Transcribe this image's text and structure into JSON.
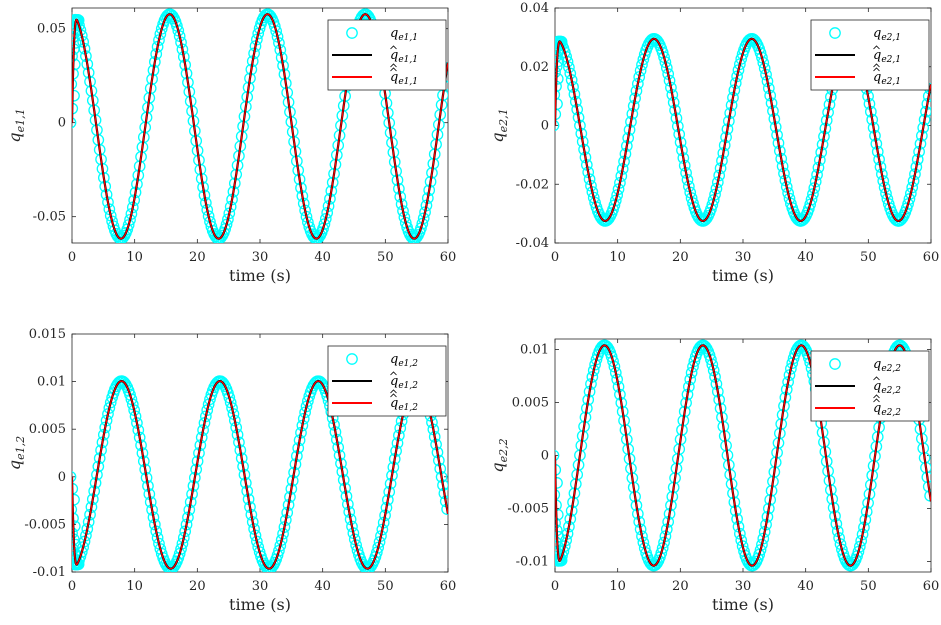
{
  "chart_data": [
    {
      "type": "line",
      "xlabel": "time (s)",
      "ylabel": {
        "base": "q",
        "sub": "e1,1"
      },
      "xlim": [
        0,
        60
      ],
      "ylim": [
        -0.064,
        0.061
      ],
      "xticks": [
        "0",
        "10",
        "20",
        "30",
        "40",
        "50",
        "60"
      ],
      "yticks": [
        {
          "v": 0.05,
          "label": "0.05"
        },
        {
          "v": 0,
          "label": "0"
        },
        {
          "v": -0.05,
          "label": "-0.05"
        }
      ],
      "legend": {
        "position": "top-right",
        "entries": [
          {
            "base": "q",
            "hat": 0,
            "sub": "e1,1"
          },
          {
            "base": "q",
            "hat": 1,
            "sub": "e1,1"
          },
          {
            "base": "q",
            "hat": 2,
            "sub": "e1,1"
          }
        ]
      },
      "signal": {
        "amplitude": 0.0597,
        "period": 15.6,
        "peak_time": 15.6,
        "offset": -0.002,
        "rise_end": 0.9
      },
      "series": [
        {
          "name": "q_e1,1",
          "style": "markers",
          "color": "#00ffff"
        },
        {
          "name": "q̂_e1,1",
          "style": "line",
          "color": "#000000"
        },
        {
          "name": "q̂̂_e1,1",
          "style": "line",
          "color": "#ff0000"
        }
      ]
    },
    {
      "type": "line",
      "xlabel": "time (s)",
      "ylabel": {
        "base": "q",
        "sub": "e2,1"
      },
      "xlim": [
        0,
        60
      ],
      "ylim": [
        -0.04,
        0.04
      ],
      "xticks": [
        "0",
        "10",
        "20",
        "30",
        "40",
        "50",
        "60"
      ],
      "yticks": [
        {
          "v": 0.04,
          "label": "0.04"
        },
        {
          "v": 0.02,
          "label": "0.02"
        },
        {
          "v": 0,
          "label": "0"
        },
        {
          "v": -0.02,
          "label": "-0.02"
        },
        {
          "v": -0.04,
          "label": "-0.04"
        }
      ],
      "legend": {
        "position": "top-right",
        "entries": [
          {
            "base": "q",
            "hat": 0,
            "sub": "e2,1"
          },
          {
            "base": "q",
            "hat": 1,
            "sub": "e2,1"
          },
          {
            "base": "q",
            "hat": 2,
            "sub": "e2,1"
          }
        ]
      },
      "signal": {
        "amplitude": 0.031,
        "period": 15.6,
        "peak_time": 15.8,
        "offset": -0.0015,
        "rise_end": 0.9
      },
      "series": [
        {
          "name": "q_e2,1",
          "style": "markers",
          "color": "#00ffff"
        },
        {
          "name": "q̂_e2,1",
          "style": "line",
          "color": "#000000"
        },
        {
          "name": "q̂̂_e2,1",
          "style": "line",
          "color": "#ff0000"
        }
      ]
    },
    {
      "type": "line",
      "xlabel": "time (s)",
      "ylabel": {
        "base": "q",
        "sub": "e1,2"
      },
      "xlim": [
        0,
        60
      ],
      "ylim": [
        -0.01,
        0.015
      ],
      "xticks": [
        "0",
        "10",
        "20",
        "30",
        "40",
        "50",
        "60"
      ],
      "yticks": [
        {
          "v": 0.015,
          "label": "0.015"
        },
        {
          "v": 0.01,
          "label": "0.01"
        },
        {
          "v": 0.005,
          "label": "0.005"
        },
        {
          "v": 0,
          "label": "0"
        },
        {
          "v": -0.005,
          "label": "-0.005"
        },
        {
          "v": -0.01,
          "label": "-0.01"
        }
      ],
      "legend": {
        "position": "top-right",
        "entries": [
          {
            "base": "q",
            "hat": 0,
            "sub": "e1,2"
          },
          {
            "base": "q",
            "hat": 1,
            "sub": "e1,2"
          },
          {
            "base": "q",
            "hat": 2,
            "sub": "e1,2"
          }
        ]
      },
      "signal": {
        "amplitude": 0.00985,
        "period": 15.7,
        "peak_time": 7.9,
        "offset": 0.0002,
        "rise_end": 0.9
      },
      "series": [
        {
          "name": "q_e1,2",
          "style": "markers",
          "color": "#00ffff"
        },
        {
          "name": "q̂_e1,2",
          "style": "line",
          "color": "#000000"
        },
        {
          "name": "q̂̂_e1,2",
          "style": "line",
          "color": "#ff0000"
        }
      ]
    },
    {
      "type": "line",
      "xlabel": "time (s)",
      "ylabel": {
        "base": "q",
        "sub": "e2,2"
      },
      "xlim": [
        0,
        60
      ],
      "ylim": [
        -0.011,
        0.011
      ],
      "xticks": [
        "0",
        "10",
        "20",
        "30",
        "40",
        "50",
        "60"
      ],
      "yticks": [
        {
          "v": 0.01,
          "label": "0.01"
        },
        {
          "v": 0.005,
          "label": "0.005"
        },
        {
          "v": 0,
          "label": "0"
        },
        {
          "v": -0.005,
          "label": "-0.005"
        },
        {
          "v": -0.01,
          "label": "-0.01"
        }
      ],
      "legend": {
        "position": "top-right",
        "entries": [
          {
            "base": "q",
            "hat": 0,
            "sub": "e2,2"
          },
          {
            "base": "q",
            "hat": 1,
            "sub": "e2,2"
          },
          {
            "base": "q",
            "hat": 2,
            "sub": "e2,2"
          }
        ]
      },
      "signal": {
        "amplitude": 0.0104,
        "period": 15.7,
        "peak_time": 7.9,
        "offset": 0.0,
        "rise_end": 0.9
      },
      "series": [
        {
          "name": "q_e2,2",
          "style": "markers",
          "color": "#00ffff"
        },
        {
          "name": "q̂_e2,2",
          "style": "line",
          "color": "#000000"
        },
        {
          "name": "q̂̂_e2,2",
          "style": "line",
          "color": "#ff0000"
        }
      ]
    }
  ]
}
